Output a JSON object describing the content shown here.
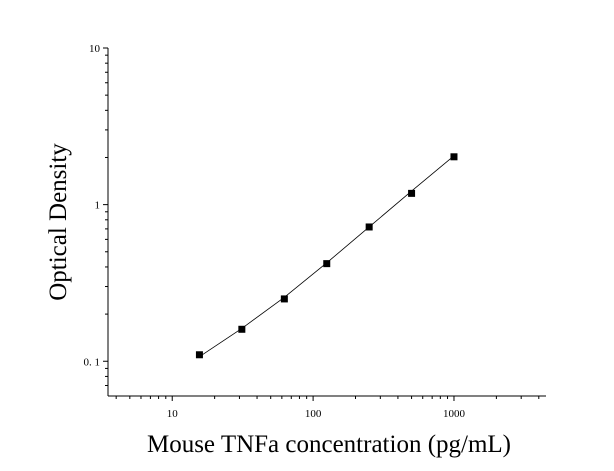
{
  "chart_data": {
    "type": "scatter",
    "title": "",
    "xlabel": "Mouse TNFa concentration (pg/mL)",
    "ylabel": "Optical Density",
    "xscale": "log",
    "yscale": "log",
    "xlim": [
      3.5,
      4500
    ],
    "ylim": [
      0.06,
      10
    ],
    "grid": false,
    "x_ticks": [
      {
        "value": 10,
        "label": "10"
      },
      {
        "value": 100,
        "label": "100"
      },
      {
        "value": 1000,
        "label": "1000"
      }
    ],
    "y_ticks": [
      {
        "value": 0.1,
        "label": "0. 1"
      },
      {
        "value": 1,
        "label": "1"
      },
      {
        "value": 10,
        "label": "10"
      }
    ],
    "series": [
      {
        "marker": "square",
        "color": "#000000",
        "points": [
          {
            "x": 15.6,
            "y": 0.11
          },
          {
            "x": 31.2,
            "y": 0.16
          },
          {
            "x": 62.5,
            "y": 0.25
          },
          {
            "x": 125,
            "y": 0.42
          },
          {
            "x": 250,
            "y": 0.72
          },
          {
            "x": 500,
            "y": 1.18
          },
          {
            "x": 1000,
            "y": 2.02
          }
        ]
      }
    ],
    "fit_curve": {
      "color": "#000000",
      "points": [
        {
          "x": 15.6,
          "y": 0.107
        },
        {
          "x": 31.2,
          "y": 0.162
        },
        {
          "x": 62.5,
          "y": 0.256
        },
        {
          "x": 125,
          "y": 0.425
        },
        {
          "x": 250,
          "y": 0.72
        },
        {
          "x": 500,
          "y": 1.22
        },
        {
          "x": 1000,
          "y": 2.05
        }
      ]
    }
  }
}
